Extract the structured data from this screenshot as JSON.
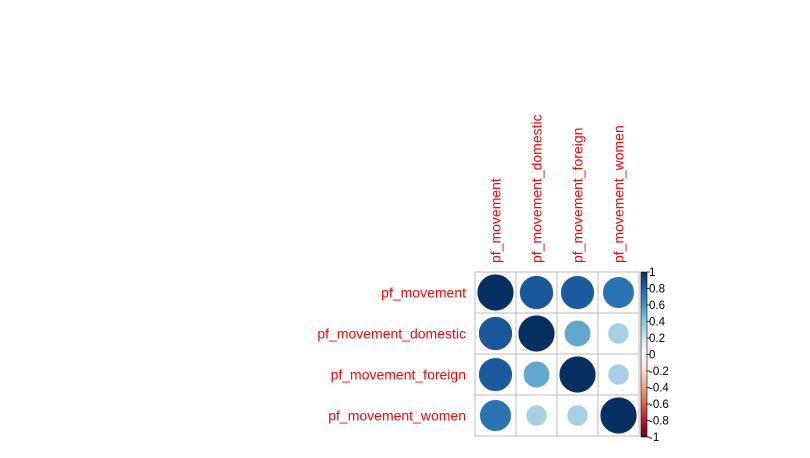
{
  "chart_data": {
    "type": "heatmap",
    "style": "corrplot-circle",
    "variables": [
      "pf_movement",
      "pf_movement_domestic",
      "pf_movement_foreign",
      "pf_movement_women"
    ],
    "matrix": [
      [
        1.0,
        0.85,
        0.84,
        0.74
      ],
      [
        0.85,
        1.0,
        0.52,
        0.33
      ],
      [
        0.84,
        0.52,
        1.0,
        0.33
      ],
      [
        0.74,
        0.33,
        0.33,
        1.0
      ]
    ],
    "colorbar": {
      "range": [
        -1,
        1
      ],
      "ticks": [
        "1",
        "0.8",
        "0.6",
        "0.4",
        "0.2",
        "0",
        "-0.2",
        "-0.4",
        "-0.6",
        "-0.8",
        "-1"
      ],
      "ticks_values": [
        1,
        0.8,
        0.6,
        0.4,
        0.2,
        0,
        -0.2,
        -0.4,
        -0.6,
        -0.8,
        -1
      ]
    },
    "colors": {
      "label": "#ff0000",
      "grid": "#bebebe",
      "text": "#000000",
      "palette": [
        "#67001f",
        "#b2182b",
        "#d6604d",
        "#f4a582",
        "#fddbc7",
        "#ffffff",
        "#d1e5f0",
        "#92c5de",
        "#4393c3",
        "#2166ac",
        "#053061"
      ]
    },
    "grid": true,
    "legend_placement": "right"
  }
}
